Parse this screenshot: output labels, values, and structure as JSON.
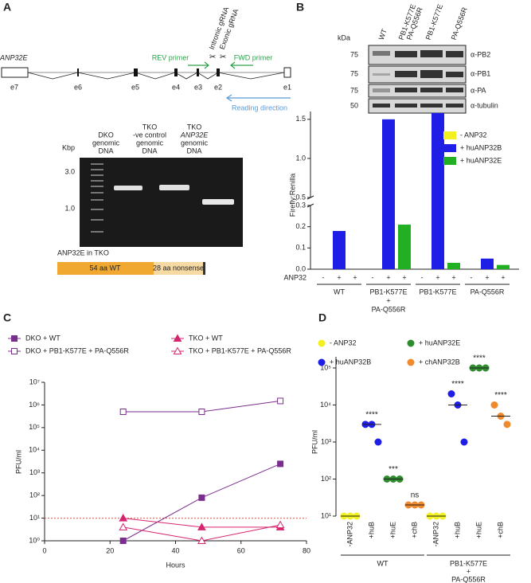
{
  "panel_a": {
    "label": "A",
    "gene": "ANP32E",
    "exons": [
      "e7",
      "e6",
      "e5",
      "e4",
      "e3",
      "e2",
      "e1"
    ],
    "primers": [
      "REV primer",
      "FWD primer"
    ],
    "grnas": [
      "Intronic gRNA",
      "Exonic gRNA"
    ],
    "direction": "Reading direction",
    "gel": {
      "unit": "Kbp",
      "markers": [
        "3.0",
        "1.0"
      ],
      "lanes": [
        [
          "DKO",
          "genomic",
          "DNA"
        ],
        [
          "TKO",
          "-ve control",
          "genomic",
          "DNA"
        ],
        [
          "TKO",
          "ANP32E",
          "genomic",
          "DNA"
        ]
      ]
    },
    "protein": {
      "title": "ANP32E in TKO",
      "segments": [
        "54 aa WT",
        "28 aa nonsense"
      ]
    }
  },
  "panel_b_blot": {
    "label": "B",
    "unit": "kDa",
    "lanes": [
      [
        "WT"
      ],
      [
        "PB1-K577E",
        "PA-Q556R"
      ],
      [
        "PB1-K577E"
      ],
      [
        "PA-Q556R"
      ]
    ],
    "rows": [
      {
        "kda": "75",
        "antibody": "α-PB2"
      },
      {
        "kda": "75",
        "antibody": "α-PB1"
      },
      {
        "kda": "75",
        "antibody": "α-PA"
      },
      {
        "kda": "50",
        "antibody": "α-tubulin"
      }
    ]
  },
  "chart_data": [
    {
      "type": "bar",
      "ylabel": "Firefly:Renilla",
      "groups": [
        [
          "WT"
        ],
        [
          "PB1-K577E",
          "+",
          "PA-Q556R"
        ],
        [
          "PB1-K577E"
        ],
        [
          "PA-Q556R"
        ]
      ],
      "row_label": "ANP32",
      "signs": [
        "-",
        "+",
        "+"
      ],
      "series": [
        {
          "name": "- ANP32",
          "color": "#f2f01e",
          "values": [
            0,
            0,
            0,
            0
          ]
        },
        {
          "name": "+ huANP32B",
          "color": "#1f1ee6",
          "values": [
            0.18,
            1.5,
            1.58,
            0.05
          ]
        },
        {
          "name": "+ huANP32E",
          "color": "#22b022",
          "values": [
            0,
            0.21,
            0.03,
            0.02
          ]
        }
      ],
      "ylim": [
        0,
        1.6
      ],
      "axis_break": [
        0.3,
        0.5
      ],
      "yticks": [
        {
          "value": 0,
          "label": "0.0"
        },
        0.1,
        0.2,
        0.3,
        0.5,
        {
          "value": 1,
          "label": "1.0"
        },
        1.5
      ]
    },
    {
      "type": "line",
      "panel": "C",
      "xlabel": "Hours",
      "ylabel": "PFU/ml",
      "x": [
        24,
        48,
        72
      ],
      "series": [
        {
          "name": "DKO + WT",
          "color": "#7b2d8e",
          "marker": "square",
          "filled": true,
          "values": [
            1,
            80,
            2500
          ]
        },
        {
          "name": "DKO + PB1-K577E + PA-Q556R",
          "color": "#7b2d8e",
          "marker": "square",
          "filled": false,
          "values": [
            500000,
            500000,
            1500000
          ]
        },
        {
          "name": "TKO + WT",
          "color": "#d6246e",
          "marker": "triangle",
          "filled": true,
          "values": [
            10,
            4,
            4
          ]
        },
        {
          "name": "TKO + PB1-K577E + PA-Q556R",
          "color": "#d6246e",
          "marker": "triangle",
          "filled": false,
          "values": [
            4,
            1,
            5
          ]
        }
      ],
      "reference_line": 10,
      "log_y": true,
      "xlim": [
        0,
        80
      ],
      "xticks": [
        0,
        20,
        40,
        60,
        80
      ],
      "ylim": [
        1,
        10000000
      ],
      "yticks": [
        {
          "value": 1,
          "label": "10⁰"
        },
        {
          "value": 10,
          "label": "10¹"
        },
        {
          "value": 100,
          "label": "10²"
        },
        {
          "value": 1000,
          "label": "10³"
        },
        {
          "value": 10000,
          "label": "10⁴"
        },
        {
          "value": 100000,
          "label": "10⁵"
        },
        {
          "value": 1000000,
          "label": "10⁶"
        },
        {
          "value": 10000000,
          "label": "10⁷"
        }
      ]
    },
    {
      "type": "dot",
      "panel": "D",
      "ylabel": "PFU/ml",
      "categories": [
        "-ANP32",
        "+huB",
        "+huE",
        "+chB",
        "-ANP32",
        "+huB",
        "+huE",
        "+chB"
      ],
      "groups": [
        [
          "WT"
        ],
        [
          "PB1-K577E",
          "+",
          "PA-Q556R"
        ]
      ],
      "annotations": [
        null,
        "****",
        "***",
        "ns",
        null,
        "****",
        "****",
        "****"
      ],
      "series": [
        {
          "name": "- ANP32",
          "color": "#f2f01e",
          "values": [
            [
              10,
              10,
              10
            ],
            null,
            null,
            null,
            [
              10,
              10,
              10
            ],
            null,
            null,
            null
          ],
          "medians": [
            10,
            null,
            null,
            null,
            10,
            null,
            null,
            null
          ]
        },
        {
          "name": "+ huANP32B",
          "color": "#1f1ee6",
          "values": [
            null,
            [
              3000,
              3000,
              1000
            ],
            null,
            null,
            null,
            [
              20000,
              10000,
              1000
            ],
            null,
            null
          ],
          "medians": [
            null,
            3000,
            null,
            null,
            null,
            10000,
            null,
            null
          ]
        },
        {
          "name": "+ huANP32E",
          "color": "#2e8b2e",
          "values": [
            null,
            null,
            [
              100,
              100,
              100
            ],
            null,
            null,
            null,
            [
              100000,
              100000,
              100000
            ],
            null
          ],
          "medians": [
            null,
            null,
            100,
            null,
            null,
            null,
            100000,
            null
          ]
        },
        {
          "name": "+ chANP32B",
          "color": "#f08a2c",
          "values": [
            null,
            null,
            null,
            [
              20,
              20,
              20
            ],
            null,
            null,
            null,
            [
              10000,
              5000,
              3000
            ]
          ],
          "medians": [
            null,
            null,
            null,
            20,
            null,
            null,
            null,
            5000
          ]
        }
      ],
      "log_y": true,
      "ylim": [
        10,
        200000
      ],
      "yticks": [
        {
          "value": 10,
          "label": "10¹"
        },
        {
          "value": 100,
          "label": "10²"
        },
        {
          "value": 1000,
          "label": "10³"
        },
        {
          "value": 10000,
          "label": "10⁴"
        },
        {
          "value": 100000,
          "label": "10⁵"
        }
      ]
    }
  ]
}
